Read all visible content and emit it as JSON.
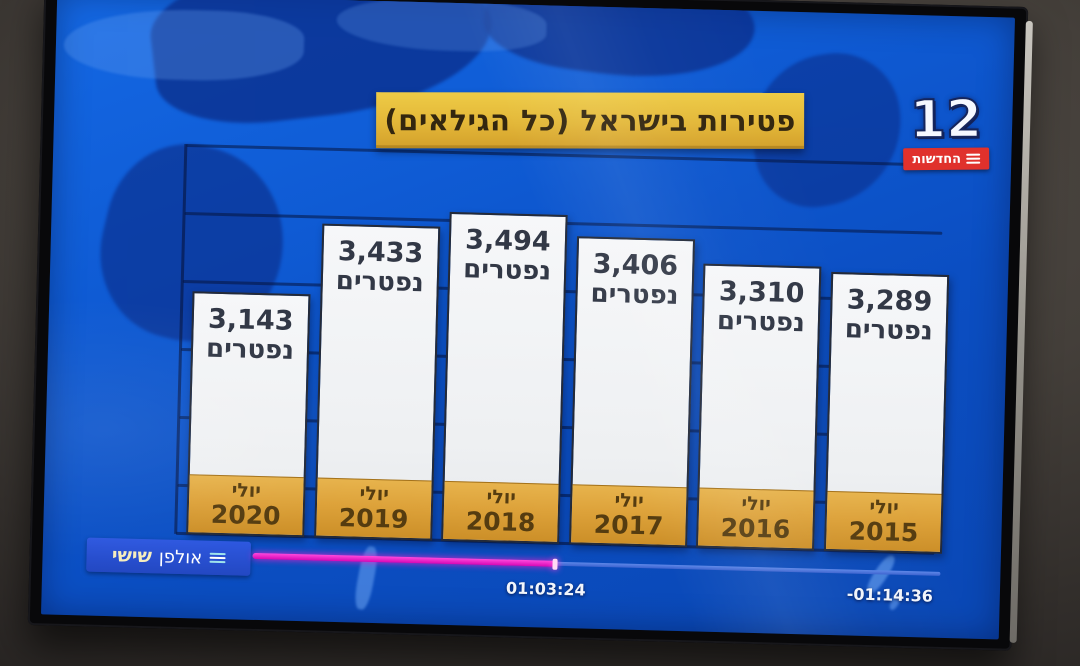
{
  "channel": {
    "logo_number": "12",
    "news_badge": "החדשות"
  },
  "chart_data": {
    "type": "bar",
    "title": "פטירות בישראל (כל הגילאים)",
    "xlabel": "",
    "ylabel": "",
    "direction": "rtl",
    "grid": true,
    "legend": false,
    "unit_label": "נפטרים",
    "categories": [
      "יולי 2020",
      "יולי 2019",
      "יולי 2018",
      "יולי 2017",
      "יולי 2016",
      "יולי 2015"
    ],
    "values": [
      3143,
      3433,
      3494,
      3406,
      3310,
      3289
    ],
    "ylim_hint": [
      2150,
      3600
    ],
    "bars": [
      {
        "month": "יולי",
        "year": "2020",
        "value": 3143,
        "value_label": "3,143",
        "unit": "נפטרים"
      },
      {
        "month": "יולי",
        "year": "2019",
        "value": 3433,
        "value_label": "3,433",
        "unit": "נפטרים"
      },
      {
        "month": "יולי",
        "year": "2018",
        "value": 3494,
        "value_label": "3,494",
        "unit": "נפטרים"
      },
      {
        "month": "יולי",
        "year": "2017",
        "value": 3406,
        "value_label": "3,406",
        "unit": "נפטרים"
      },
      {
        "month": "יולי",
        "year": "2016",
        "value": 3310,
        "value_label": "3,310",
        "unit": "נפטרים"
      },
      {
        "month": "יולי",
        "year": "2015",
        "value": 3289,
        "value_label": "3,289",
        "unit": "נפטרים"
      }
    ]
  },
  "player": {
    "program_label": "אולפן",
    "day_label": "שישי",
    "elapsed": "01:03:24",
    "remaining": "-01:14:36",
    "progress_percent": 44
  },
  "colors": {
    "screen_blue": "#0f5bd4",
    "map_dark_blue": "#0b2f8c",
    "title_gold": "#e3b738",
    "bar_fill": "#f3f4f6",
    "bar_footer_gold": "#dda23a",
    "progress_magenta": "#e714c4",
    "news_red": "#e0312c",
    "grid_navy": "#06143e"
  }
}
